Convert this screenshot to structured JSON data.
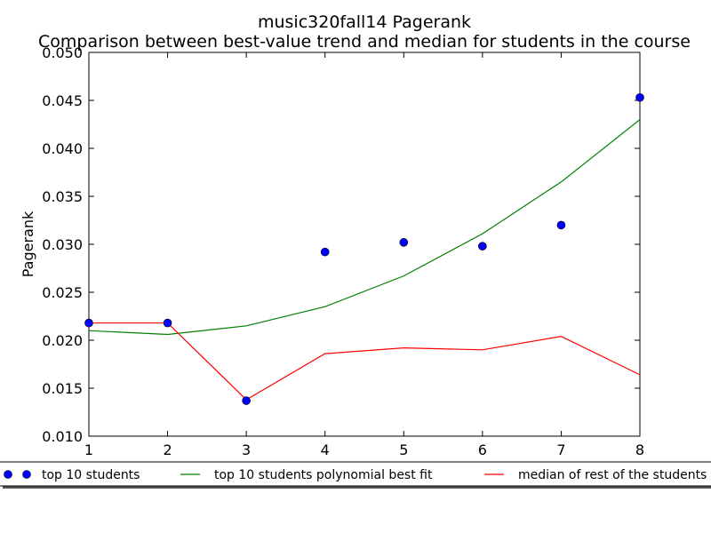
{
  "chart_data": {
    "type": "line",
    "title": "music320fall14 Pagerank",
    "subtitle": "Comparison between best-value trend and median for students in the course",
    "xlabel": "",
    "ylabel": "Pagerank",
    "xlim": [
      1,
      8
    ],
    "ylim": [
      0.01,
      0.05
    ],
    "x_ticks": [
      "1",
      "2",
      "3",
      "4",
      "5",
      "6",
      "7",
      "8"
    ],
    "y_ticks": [
      "0.010",
      "0.015",
      "0.020",
      "0.025",
      "0.030",
      "0.035",
      "0.040",
      "0.045",
      "0.050"
    ],
    "grid": false,
    "legend_position": "bottom",
    "x": [
      1,
      2,
      3,
      4,
      5,
      6,
      7,
      8
    ],
    "series": [
      {
        "name": "top 10 students",
        "kind": "scatter",
        "color": "#0000ff",
        "values": [
          0.0218,
          0.0218,
          0.0137,
          0.0292,
          0.0302,
          0.0298,
          0.032,
          0.0453
        ]
      },
      {
        "name": "top 10 students polynomial best fit",
        "kind": "line",
        "color": "#008000",
        "values": [
          0.021,
          0.0206,
          0.0215,
          0.0235,
          0.0267,
          0.0311,
          0.0365,
          0.043
        ]
      },
      {
        "name": "median of rest of the students",
        "kind": "line",
        "color": "#ff0000",
        "values": [
          0.0218,
          0.0218,
          0.0138,
          0.0186,
          0.0192,
          0.019,
          0.0204,
          0.0164
        ]
      }
    ]
  }
}
